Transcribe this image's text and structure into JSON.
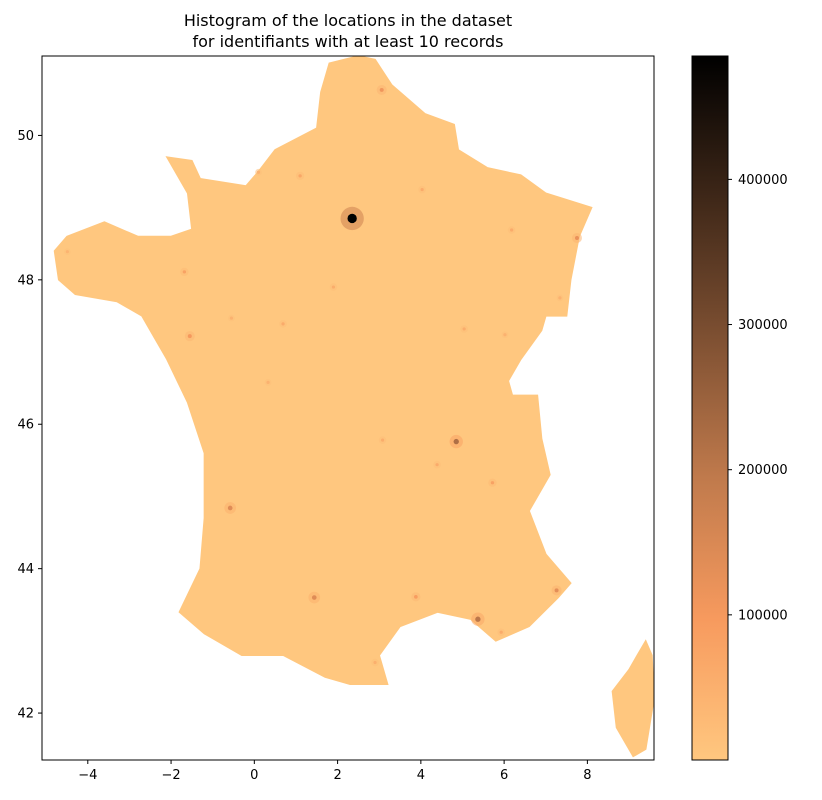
{
  "chart_data": {
    "type": "heatmap",
    "title_lines": [
      "Histogram of the locations in the dataset",
      "for identifiants with at least 10 records"
    ],
    "xlabel": "",
    "ylabel": "",
    "xlim": [
      -5.1,
      9.6
    ],
    "ylim": [
      41.35,
      51.1
    ],
    "x_ticks": [
      -4,
      -2,
      0,
      2,
      4,
      6,
      8
    ],
    "y_ticks": [
      42,
      44,
      46,
      48,
      50
    ],
    "grid": false,
    "colormap": "copper_r",
    "colors": {
      "low": "#ffc77f",
      "mid": "#c07a4c",
      "high": "#000000",
      "background": "#ffffff"
    },
    "colorbar": {
      "range": [
        0,
        485000
      ],
      "ticks": [
        100000,
        200000,
        300000,
        400000
      ],
      "tick_labels": [
        "100000",
        "200000",
        "300000",
        "400000"
      ]
    },
    "regions": [
      {
        "name": "mainland",
        "outline": [
          [
            -2.1,
            49.7
          ],
          [
            -1.5,
            49.65
          ],
          [
            -1.3,
            49.4
          ],
          [
            -0.2,
            49.3
          ],
          [
            0.1,
            49.5
          ],
          [
            0.5,
            49.8
          ],
          [
            1.5,
            50.1
          ],
          [
            1.6,
            50.6
          ],
          [
            1.8,
            51.0
          ],
          [
            2.5,
            51.1
          ],
          [
            2.9,
            51.05
          ],
          [
            3.3,
            50.7
          ],
          [
            4.1,
            50.3
          ],
          [
            4.8,
            50.15
          ],
          [
            4.9,
            49.8
          ],
          [
            5.6,
            49.55
          ],
          [
            6.4,
            49.45
          ],
          [
            7.0,
            49.2
          ],
          [
            8.1,
            49.0
          ],
          [
            7.8,
            48.6
          ],
          [
            7.6,
            48.0
          ],
          [
            7.5,
            47.5
          ],
          [
            7.0,
            47.5
          ],
          [
            6.9,
            47.3
          ],
          [
            6.4,
            46.9
          ],
          [
            6.1,
            46.6
          ],
          [
            6.2,
            46.4
          ],
          [
            6.8,
            46.4
          ],
          [
            6.9,
            45.8
          ],
          [
            7.1,
            45.3
          ],
          [
            6.6,
            44.8
          ],
          [
            7.0,
            44.2
          ],
          [
            7.6,
            43.8
          ],
          [
            7.3,
            43.6
          ],
          [
            6.6,
            43.2
          ],
          [
            5.8,
            43.0
          ],
          [
            5.2,
            43.3
          ],
          [
            4.4,
            43.4
          ],
          [
            3.5,
            43.2
          ],
          [
            3.0,
            42.8
          ],
          [
            3.2,
            42.4
          ],
          [
            2.3,
            42.4
          ],
          [
            1.7,
            42.5
          ],
          [
            0.7,
            42.8
          ],
          [
            -0.3,
            42.8
          ],
          [
            -1.2,
            43.1
          ],
          [
            -1.8,
            43.4
          ],
          [
            -1.3,
            44.0
          ],
          [
            -1.2,
            44.7
          ],
          [
            -1.2,
            45.6
          ],
          [
            -1.6,
            46.3
          ],
          [
            -2.1,
            46.9
          ],
          [
            -2.4,
            47.2
          ],
          [
            -2.7,
            47.5
          ],
          [
            -3.3,
            47.7
          ],
          [
            -4.3,
            47.8
          ],
          [
            -4.7,
            48.0
          ],
          [
            -4.8,
            48.4
          ],
          [
            -4.5,
            48.6
          ],
          [
            -3.6,
            48.8
          ],
          [
            -2.8,
            48.6
          ],
          [
            -2.0,
            48.6
          ],
          [
            -1.5,
            48.7
          ],
          [
            -1.6,
            49.2
          ],
          [
            -1.9,
            49.5
          ]
        ]
      },
      {
        "name": "corsica",
        "outline": [
          [
            9.4,
            43.0
          ],
          [
            9.55,
            42.8
          ],
          [
            9.6,
            42.2
          ],
          [
            9.4,
            41.5
          ],
          [
            9.1,
            41.4
          ],
          [
            8.7,
            41.8
          ],
          [
            8.6,
            42.3
          ],
          [
            9.0,
            42.6
          ],
          [
            9.2,
            42.8
          ]
        ]
      }
    ],
    "hotspots": [
      {
        "x": 2.35,
        "y": 48.85,
        "value": 485000,
        "spread": 0.28
      },
      {
        "x": 4.85,
        "y": 45.76,
        "value": 220000,
        "spread": 0.16
      },
      {
        "x": 5.37,
        "y": 43.3,
        "value": 200000,
        "spread": 0.16
      },
      {
        "x": 1.44,
        "y": 43.6,
        "value": 140000,
        "spread": 0.14
      },
      {
        "x": -0.58,
        "y": 44.84,
        "value": 140000,
        "spread": 0.14
      },
      {
        "x": 7.26,
        "y": 43.7,
        "value": 130000,
        "spread": 0.12
      },
      {
        "x": 3.06,
        "y": 50.63,
        "value": 110000,
        "spread": 0.12
      },
      {
        "x": 7.75,
        "y": 48.58,
        "value": 120000,
        "spread": 0.12
      },
      {
        "x": -1.55,
        "y": 47.22,
        "value": 100000,
        "spread": 0.12
      },
      {
        "x": 3.88,
        "y": 43.61,
        "value": 90000,
        "spread": 0.11
      },
      {
        "x": -1.68,
        "y": 48.11,
        "value": 80000,
        "spread": 0.1
      },
      {
        "x": 5.72,
        "y": 45.19,
        "value": 80000,
        "spread": 0.1
      },
      {
        "x": 1.1,
        "y": 49.44,
        "value": 70000,
        "spread": 0.1
      },
      {
        "x": 0.69,
        "y": 47.39,
        "value": 60000,
        "spread": 0.09
      },
      {
        "x": 4.03,
        "y": 49.25,
        "value": 60000,
        "spread": 0.09
      },
      {
        "x": 6.18,
        "y": 48.69,
        "value": 60000,
        "spread": 0.09
      },
      {
        "x": 5.93,
        "y": 43.12,
        "value": 60000,
        "spread": 0.09
      },
      {
        "x": 4.39,
        "y": 45.44,
        "value": 60000,
        "spread": 0.09
      },
      {
        "x": 3.08,
        "y": 45.78,
        "value": 55000,
        "spread": 0.09
      },
      {
        "x": 1.9,
        "y": 47.9,
        "value": 55000,
        "spread": 0.09
      },
      {
        "x": 5.04,
        "y": 47.32,
        "value": 55000,
        "spread": 0.09
      },
      {
        "x": 2.9,
        "y": 42.7,
        "value": 50000,
        "spread": 0.09
      },
      {
        "x": 0.33,
        "y": 46.58,
        "value": 45000,
        "spread": 0.08
      },
      {
        "x": -0.55,
        "y": 47.47,
        "value": 45000,
        "spread": 0.08
      },
      {
        "x": 6.02,
        "y": 47.24,
        "value": 45000,
        "spread": 0.08
      },
      {
        "x": -4.49,
        "y": 48.39,
        "value": 40000,
        "spread": 0.08
      },
      {
        "x": 0.1,
        "y": 49.49,
        "value": 45000,
        "spread": 0.08
      },
      {
        "x": 7.34,
        "y": 47.75,
        "value": 45000,
        "spread": 0.08
      }
    ]
  }
}
